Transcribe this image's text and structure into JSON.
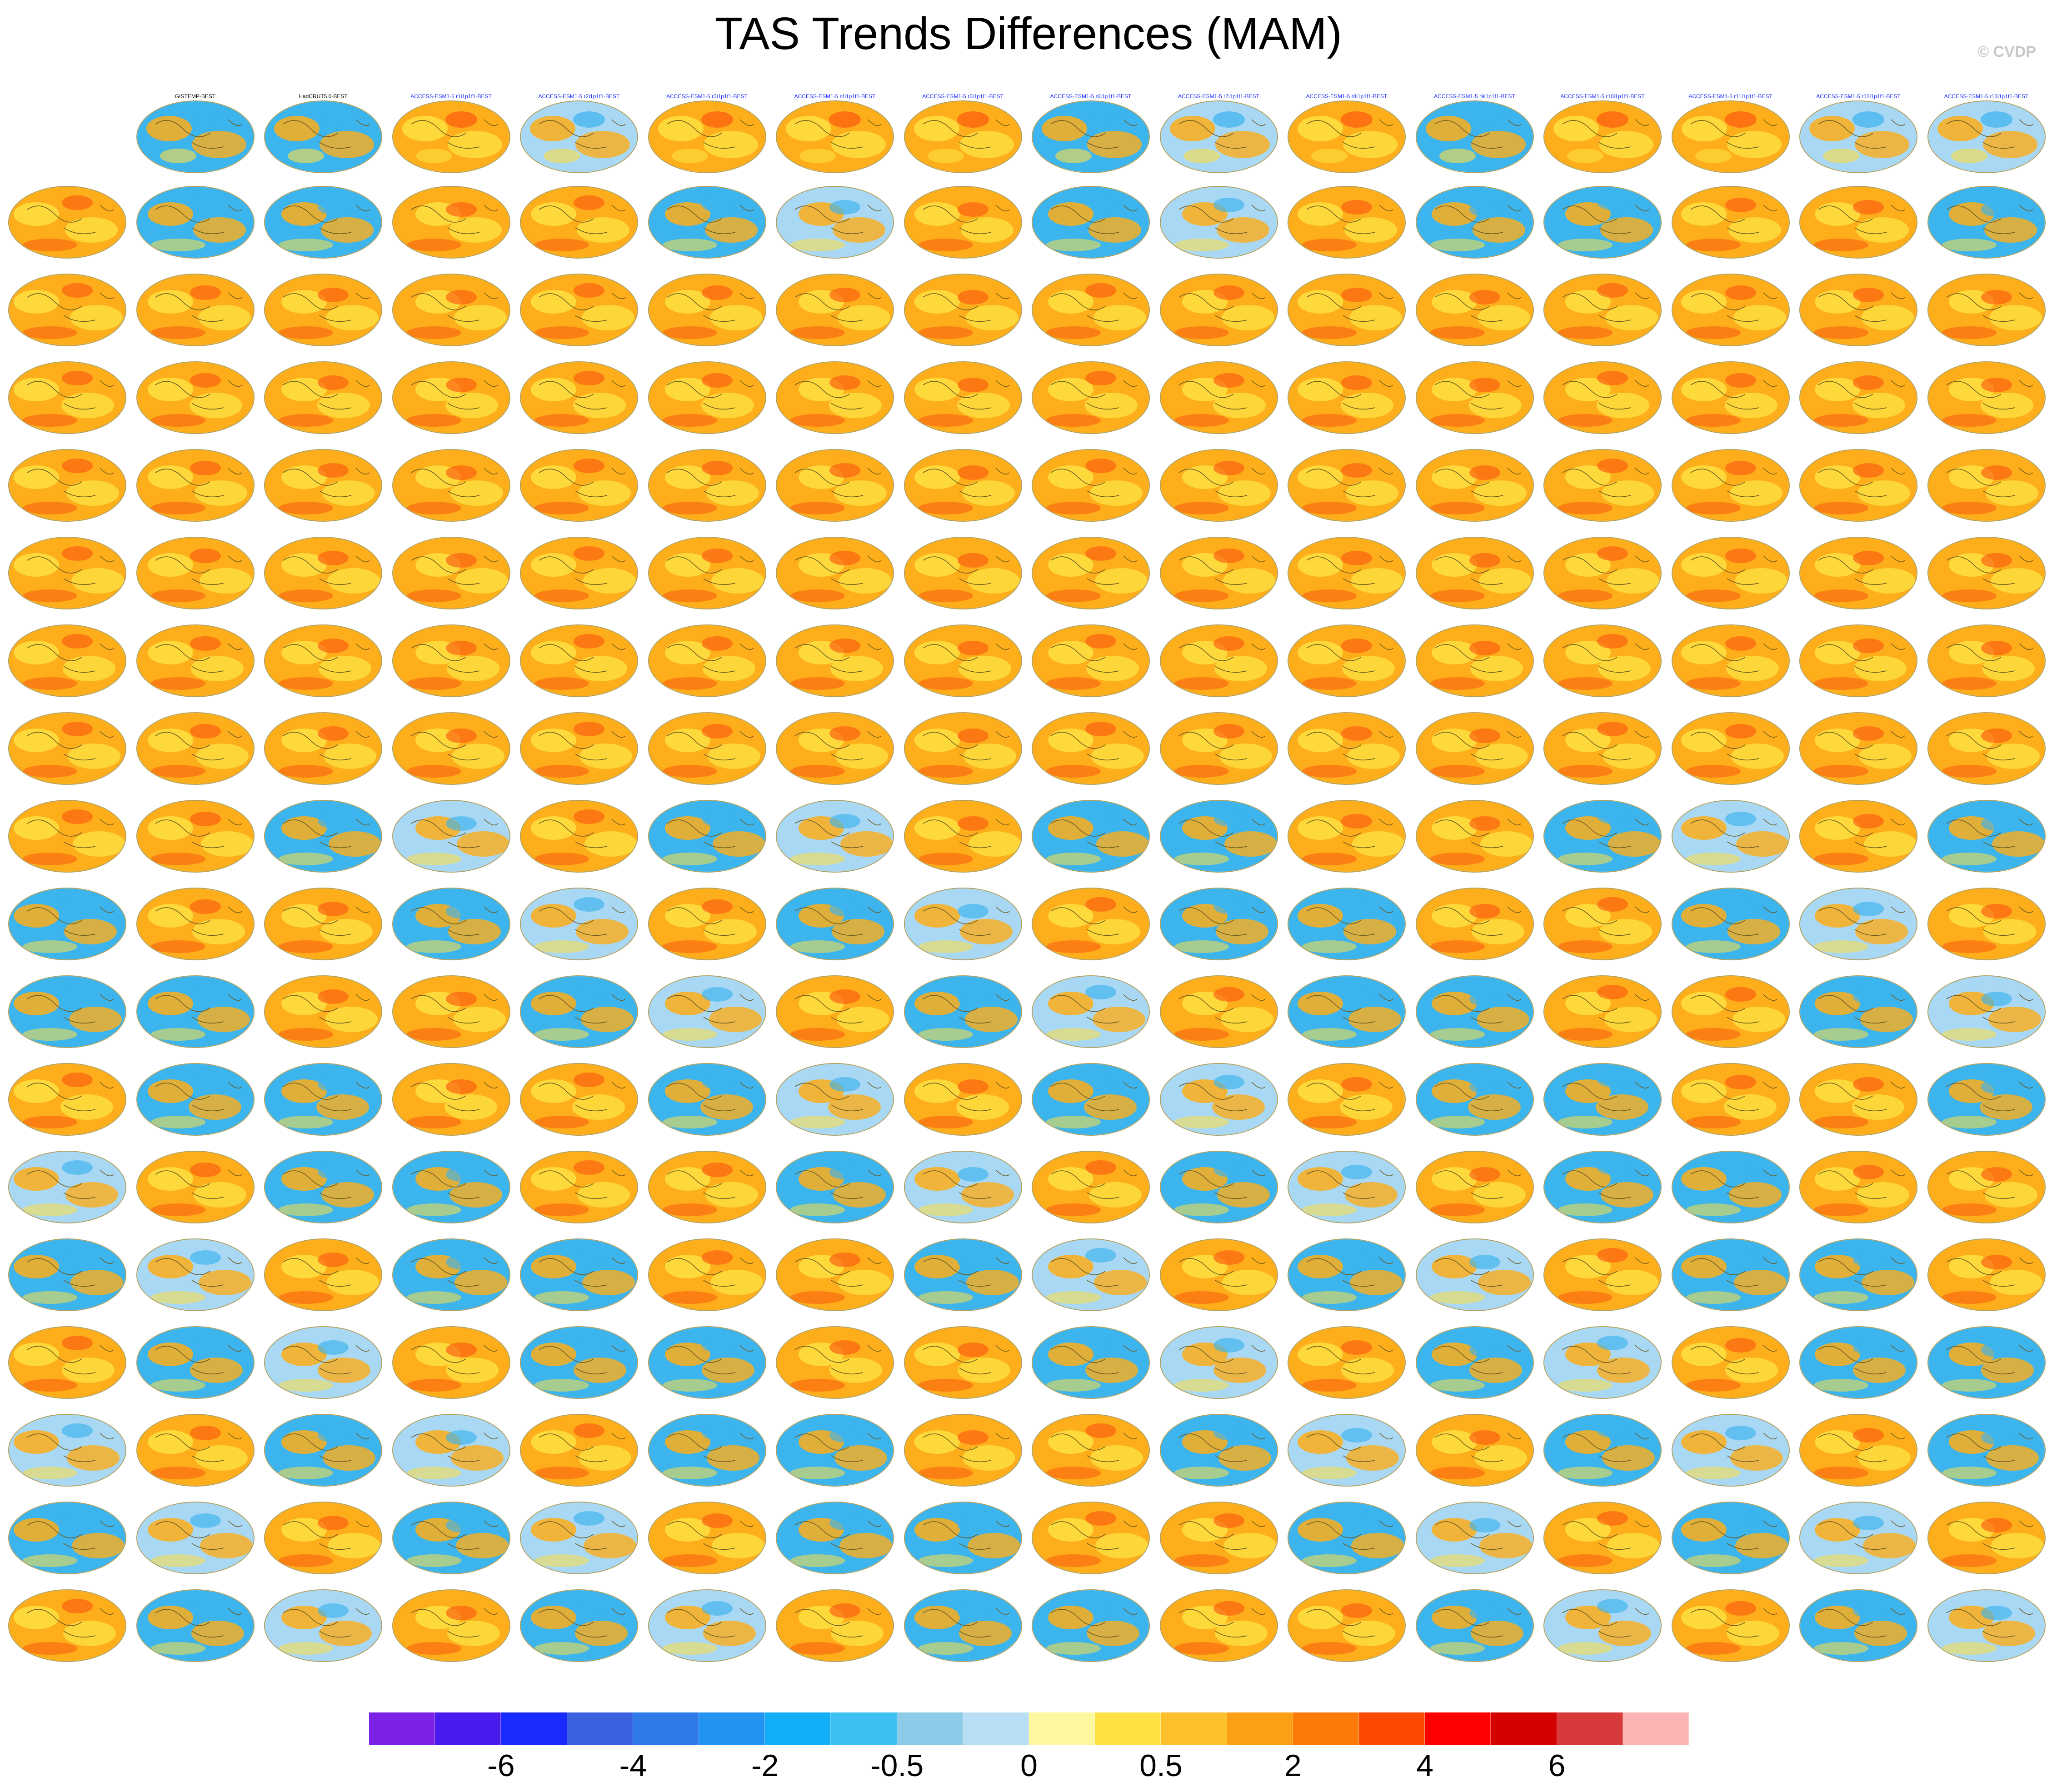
{
  "title": "TAS Trends Differences (MAM)",
  "credit": "© CVDP",
  "colorbar": {
    "colors": [
      "#7b22e6",
      "#4a1aef",
      "#1a2bff",
      "#3a62e0",
      "#2f7ae8",
      "#2393f2",
      "#12aef7",
      "#3cc0f2",
      "#8dcbe8",
      "#b8def4",
      "#fdf8a0",
      "#fde042",
      "#fdbf2c",
      "#fd9f14",
      "#fd7a09",
      "#fc4a05",
      "#ff0000",
      "#d40000",
      "#d63a3a",
      "#fcb4b4"
    ],
    "tick_labels": [
      "-6",
      "-4",
      "-2",
      "-0.5",
      "0",
      "0.5",
      "2",
      "4",
      "6"
    ]
  },
  "panels": [
    {
      "label": "GISTEMP-BEST",
      "tone": 0.2
    },
    {
      "label": "HadCRUT5.0-BEST",
      "tone": 0.35
    },
    {
      "label": "ACCESS-ESM1-5 r1i1p1f1-BEST",
      "tone": 0.8
    },
    {
      "label": "ACCESS-ESM1-5 r2i1p1f1-BEST",
      "tone": 0.4
    },
    {
      "label": "ACCESS-ESM1-5 r3i1p1f1-BEST",
      "tone": 0.6
    },
    {
      "label": "ACCESS-ESM1-5 r4i1p1f1-BEST",
      "tone": 0.75
    },
    {
      "label": "ACCESS-ESM1-5 r5i1p1f1-BEST",
      "tone": 0.6
    },
    {
      "label": "ACCESS-ESM1-5 r6i1p1f1-BEST",
      "tone": 0.3
    },
    {
      "label": "ACCESS-ESM1-5 r7i1p1f1-BEST",
      "tone": 0.5
    },
    {
      "label": "ACCESS-ESM1-5 r8i1p1f1-BEST",
      "tone": 0.65
    },
    {
      "label": "ACCESS-ESM1-5 r9i1p1f1-BEST",
      "tone": 0.35
    },
    {
      "label": "ACCESS-ESM1-5 r10i1p1f1-BEST",
      "tone": 0.7
    },
    {
      "label": "ACCESS-ESM1-5 r11i1p1f1-BEST",
      "tone": 0.75
    },
    {
      "label": "ACCESS-ESM1-5 r12i1p1f1-BEST",
      "tone": 0.55
    },
    {
      "label": "ACCESS-ESM1-5 r13i1p1f1-BEST",
      "tone": 0.45
    }
  ]
}
